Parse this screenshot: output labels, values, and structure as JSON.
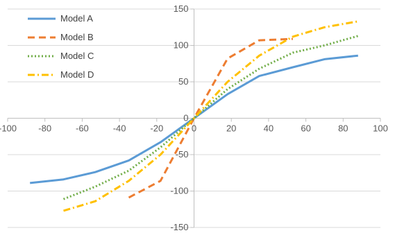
{
  "chart_data": {
    "type": "line",
    "title": "",
    "xlabel": "",
    "ylabel": "",
    "xlim": [
      -100,
      100
    ],
    "ylim": [
      -150,
      150
    ],
    "x_ticks": [
      -100,
      -80,
      -60,
      -40,
      -20,
      0,
      20,
      40,
      60,
      80,
      100
    ],
    "y_ticks": [
      -150,
      -100,
      -50,
      0,
      50,
      100,
      150
    ],
    "grid": {
      "horizontal": true,
      "vertical": false
    },
    "legend_position": "top-left",
    "series": [
      {
        "name": "Model A",
        "color": "#5B9BD5",
        "dash": "solid",
        "points": [
          [
            -88,
            -89
          ],
          [
            -70,
            -84
          ],
          [
            -53,
            -74
          ],
          [
            -35,
            -58
          ],
          [
            -18,
            -33
          ],
          [
            0,
            0
          ],
          [
            18,
            33
          ],
          [
            35,
            58
          ],
          [
            53,
            70
          ],
          [
            70,
            81
          ],
          [
            88,
            86
          ]
        ]
      },
      {
        "name": "Model B",
        "color": "#ED7D31",
        "dash": "dash",
        "points": [
          [
            -35,
            -109
          ],
          [
            -18,
            -86
          ],
          [
            0,
            0
          ],
          [
            18,
            82
          ],
          [
            35,
            107
          ],
          [
            53,
            109
          ]
        ]
      },
      {
        "name": "Model C",
        "color": "#70AD47",
        "dash": "dot",
        "points": [
          [
            -70,
            -111
          ],
          [
            -53,
            -94
          ],
          [
            -35,
            -72
          ],
          [
            -18,
            -40
          ],
          [
            0,
            0
          ],
          [
            18,
            40
          ],
          [
            35,
            68
          ],
          [
            53,
            90
          ],
          [
            70,
            100
          ],
          [
            88,
            113
          ]
        ]
      },
      {
        "name": "Model D",
        "color": "#FFC000",
        "dash": "dashdot",
        "points": [
          [
            -70,
            -127
          ],
          [
            -53,
            -114
          ],
          [
            -35,
            -86
          ],
          [
            -18,
            -50
          ],
          [
            0,
            0
          ],
          [
            18,
            50
          ],
          [
            35,
            86
          ],
          [
            53,
            112
          ],
          [
            70,
            125
          ],
          [
            88,
            133
          ]
        ]
      }
    ]
  }
}
